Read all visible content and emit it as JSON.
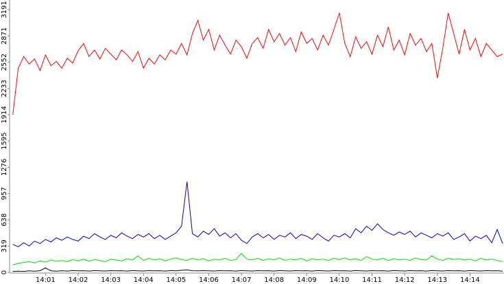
{
  "chart_data": {
    "type": "line",
    "categories": [
      null,
      null,
      null,
      null,
      null,
      null,
      "14:01",
      null,
      null,
      null,
      null,
      null,
      "14:02",
      null,
      null,
      null,
      null,
      null,
      "14:03",
      null,
      null,
      null,
      null,
      null,
      "14:04",
      null,
      null,
      null,
      null,
      null,
      "14:05",
      null,
      null,
      null,
      null,
      null,
      "14:06",
      null,
      null,
      null,
      null,
      null,
      "14:07",
      null,
      null,
      null,
      null,
      null,
      "14:08",
      null,
      null,
      null,
      null,
      null,
      "14:09",
      null,
      null,
      null,
      null,
      null,
      "14:10",
      null,
      null,
      null,
      null,
      null,
      "14:11",
      null,
      null,
      null,
      null,
      null,
      "14:12",
      null,
      null,
      null,
      null,
      null,
      "14:13",
      null,
      null,
      null,
      null,
      null,
      "14:14",
      null,
      null,
      null,
      null,
      null,
      null
    ],
    "ylim": [
      0,
      3191
    ],
    "yticks": [
      0,
      319,
      638,
      957,
      1276,
      1595,
      1914,
      2233,
      2552,
      2871,
      3191
    ],
    "series": [
      {
        "color": "#ff0000",
        "values": [
          1914,
          2480,
          2620,
          2530,
          2590,
          2450,
          2640,
          2510,
          2560,
          2480,
          2600,
          2540,
          2690,
          2780,
          2620,
          2700,
          2590,
          2720,
          2650,
          2580,
          2700,
          2640,
          2560,
          2680,
          2480,
          2600,
          2530,
          2640,
          2580,
          2700,
          2650,
          2780,
          2640,
          2900,
          3060,
          2820,
          2950,
          2700,
          2880,
          2760,
          2650,
          2820,
          2740,
          2600,
          2780,
          2850,
          2720,
          2950,
          2800,
          2900,
          2760,
          2850,
          2680,
          2920,
          2780,
          2840,
          2700,
          2880,
          2760,
          2950,
          3150,
          2780,
          2620,
          2860,
          2720,
          2800,
          2650,
          2880,
          2740,
          2980,
          2700,
          2820,
          2640,
          2900,
          2760,
          2840,
          2680,
          2780,
          2360,
          2720,
          3150,
          2900,
          2650,
          2950,
          2700,
          2840,
          2620,
          2780,
          2700,
          2620,
          2650
        ]
      },
      {
        "color": "#0000c0",
        "values": [
          340,
          310,
          360,
          320,
          380,
          350,
          400,
          370,
          420,
          390,
          430,
          400,
          380,
          440,
          410,
          470,
          430,
          400,
          450,
          420,
          480,
          440,
          410,
          460,
          430,
          470,
          410,
          450,
          400,
          440,
          480,
          560,
          1100,
          470,
          430,
          500,
          460,
          530,
          440,
          480,
          420,
          470,
          390,
          350,
          430,
          470,
          420,
          460,
          400,
          450,
          430,
          480,
          410,
          460,
          440,
          400,
          470,
          420,
          380,
          450,
          430,
          470,
          420,
          530,
          480,
          560,
          510,
          590,
          520,
          480,
          450,
          490,
          460,
          500,
          430,
          480,
          450,
          420,
          470,
          440,
          480,
          400,
          430,
          470,
          380,
          440,
          410,
          450,
          360,
          520,
          350
        ]
      },
      {
        "color": "#00e000",
        "values": [
          90,
          110,
          120,
          130,
          115,
          140,
          125,
          150,
          135,
          145,
          130,
          155,
          140,
          160,
          135,
          155,
          145,
          130,
          160,
          150,
          140,
          165,
          150,
          200,
          145,
          170,
          150,
          165,
          140,
          160,
          175,
          155,
          145,
          170,
          150,
          165,
          140,
          160,
          150,
          170,
          145,
          155,
          230,
          160,
          150,
          170,
          145,
          165,
          150,
          175,
          145,
          160,
          150,
          170,
          140,
          165,
          150,
          160,
          145,
          170,
          155,
          175,
          150,
          165,
          145,
          190,
          160,
          150,
          170,
          145,
          165,
          150,
          160,
          145,
          175,
          155,
          150,
          200,
          160,
          145,
          170,
          155,
          165,
          150,
          160,
          140,
          170,
          150,
          160,
          145,
          130
        ]
      },
      {
        "color": "#000000",
        "values": [
          10,
          15,
          12,
          18,
          14,
          20,
          55,
          18,
          15,
          20,
          16,
          22,
          18,
          20,
          16,
          22,
          19,
          17,
          21,
          18,
          20,
          16,
          22,
          19,
          17,
          21,
          18,
          20,
          16,
          22,
          19,
          25,
          30,
          20,
          18,
          21,
          19,
          17,
          21,
          18,
          20,
          16,
          22,
          19,
          17,
          21,
          18,
          20,
          16,
          22,
          19,
          17,
          21,
          18,
          20,
          16,
          22,
          19,
          17,
          21,
          18,
          20,
          16,
          22,
          19,
          17,
          21,
          18,
          20,
          16,
          22,
          19,
          17,
          21,
          18,
          20,
          16,
          22,
          19,
          17,
          21,
          18,
          20,
          16,
          22,
          19,
          17,
          21,
          18,
          20,
          15
        ]
      }
    ]
  }
}
